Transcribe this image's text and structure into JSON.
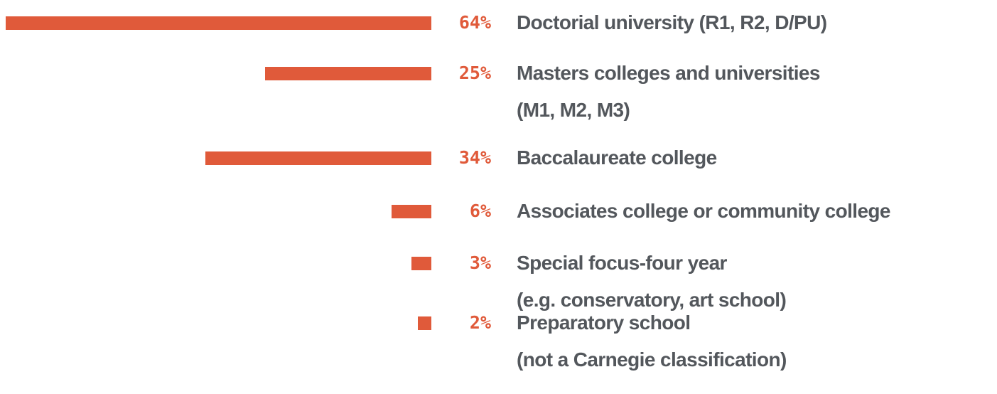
{
  "chart_data": {
    "type": "bar",
    "orientation": "horizontal",
    "color": "#e05a3a",
    "categories": [
      "Doctorial university (R1, R2, D/PU)",
      "Masters colleges and universities\n(M1, M2, M3)",
      "Baccalaureate college",
      "Associates college or community college",
      "Special focus-four year\n(e.g. conservatory, art school)",
      "Preparatory school\n(not a Carnegie classification)"
    ],
    "values": [
      64,
      25,
      34,
      6,
      3,
      2
    ],
    "value_labels": [
      "64%",
      "25%",
      "34%",
      "6%",
      "3%",
      "2%"
    ]
  }
}
